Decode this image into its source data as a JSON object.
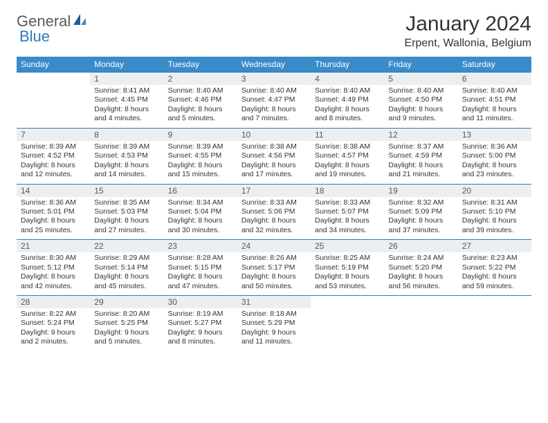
{
  "logo": {
    "text1": "General",
    "text2": "Blue"
  },
  "title": "January 2024",
  "location": "Erpent, Wallonia, Belgium",
  "colors": {
    "header_bg": "#3a8bc9",
    "header_text": "#ffffff",
    "daynum_bg": "#eceff1",
    "border": "#2f7ac0",
    "logo_gray": "#5a5a5a",
    "logo_blue": "#2f7ac0"
  },
  "day_headers": [
    "Sunday",
    "Monday",
    "Tuesday",
    "Wednesday",
    "Thursday",
    "Friday",
    "Saturday"
  ],
  "weeks": [
    [
      {
        "n": "",
        "sr": "",
        "ss": "",
        "dl": ""
      },
      {
        "n": "1",
        "sr": "Sunrise: 8:41 AM",
        "ss": "Sunset: 4:45 PM",
        "dl": "Daylight: 8 hours and 4 minutes."
      },
      {
        "n": "2",
        "sr": "Sunrise: 8:40 AM",
        "ss": "Sunset: 4:46 PM",
        "dl": "Daylight: 8 hours and 5 minutes."
      },
      {
        "n": "3",
        "sr": "Sunrise: 8:40 AM",
        "ss": "Sunset: 4:47 PM",
        "dl": "Daylight: 8 hours and 7 minutes."
      },
      {
        "n": "4",
        "sr": "Sunrise: 8:40 AM",
        "ss": "Sunset: 4:49 PM",
        "dl": "Daylight: 8 hours and 8 minutes."
      },
      {
        "n": "5",
        "sr": "Sunrise: 8:40 AM",
        "ss": "Sunset: 4:50 PM",
        "dl": "Daylight: 8 hours and 9 minutes."
      },
      {
        "n": "6",
        "sr": "Sunrise: 8:40 AM",
        "ss": "Sunset: 4:51 PM",
        "dl": "Daylight: 8 hours and 11 minutes."
      }
    ],
    [
      {
        "n": "7",
        "sr": "Sunrise: 8:39 AM",
        "ss": "Sunset: 4:52 PM",
        "dl": "Daylight: 8 hours and 12 minutes."
      },
      {
        "n": "8",
        "sr": "Sunrise: 8:39 AM",
        "ss": "Sunset: 4:53 PM",
        "dl": "Daylight: 8 hours and 14 minutes."
      },
      {
        "n": "9",
        "sr": "Sunrise: 8:39 AM",
        "ss": "Sunset: 4:55 PM",
        "dl": "Daylight: 8 hours and 15 minutes."
      },
      {
        "n": "10",
        "sr": "Sunrise: 8:38 AM",
        "ss": "Sunset: 4:56 PM",
        "dl": "Daylight: 8 hours and 17 minutes."
      },
      {
        "n": "11",
        "sr": "Sunrise: 8:38 AM",
        "ss": "Sunset: 4:57 PM",
        "dl": "Daylight: 8 hours and 19 minutes."
      },
      {
        "n": "12",
        "sr": "Sunrise: 8:37 AM",
        "ss": "Sunset: 4:59 PM",
        "dl": "Daylight: 8 hours and 21 minutes."
      },
      {
        "n": "13",
        "sr": "Sunrise: 8:36 AM",
        "ss": "Sunset: 5:00 PM",
        "dl": "Daylight: 8 hours and 23 minutes."
      }
    ],
    [
      {
        "n": "14",
        "sr": "Sunrise: 8:36 AM",
        "ss": "Sunset: 5:01 PM",
        "dl": "Daylight: 8 hours and 25 minutes."
      },
      {
        "n": "15",
        "sr": "Sunrise: 8:35 AM",
        "ss": "Sunset: 5:03 PM",
        "dl": "Daylight: 8 hours and 27 minutes."
      },
      {
        "n": "16",
        "sr": "Sunrise: 8:34 AM",
        "ss": "Sunset: 5:04 PM",
        "dl": "Daylight: 8 hours and 30 minutes."
      },
      {
        "n": "17",
        "sr": "Sunrise: 8:33 AM",
        "ss": "Sunset: 5:06 PM",
        "dl": "Daylight: 8 hours and 32 minutes."
      },
      {
        "n": "18",
        "sr": "Sunrise: 8:33 AM",
        "ss": "Sunset: 5:07 PM",
        "dl": "Daylight: 8 hours and 34 minutes."
      },
      {
        "n": "19",
        "sr": "Sunrise: 8:32 AM",
        "ss": "Sunset: 5:09 PM",
        "dl": "Daylight: 8 hours and 37 minutes."
      },
      {
        "n": "20",
        "sr": "Sunrise: 8:31 AM",
        "ss": "Sunset: 5:10 PM",
        "dl": "Daylight: 8 hours and 39 minutes."
      }
    ],
    [
      {
        "n": "21",
        "sr": "Sunrise: 8:30 AM",
        "ss": "Sunset: 5:12 PM",
        "dl": "Daylight: 8 hours and 42 minutes."
      },
      {
        "n": "22",
        "sr": "Sunrise: 8:29 AM",
        "ss": "Sunset: 5:14 PM",
        "dl": "Daylight: 8 hours and 45 minutes."
      },
      {
        "n": "23",
        "sr": "Sunrise: 8:28 AM",
        "ss": "Sunset: 5:15 PM",
        "dl": "Daylight: 8 hours and 47 minutes."
      },
      {
        "n": "24",
        "sr": "Sunrise: 8:26 AM",
        "ss": "Sunset: 5:17 PM",
        "dl": "Daylight: 8 hours and 50 minutes."
      },
      {
        "n": "25",
        "sr": "Sunrise: 8:25 AM",
        "ss": "Sunset: 5:19 PM",
        "dl": "Daylight: 8 hours and 53 minutes."
      },
      {
        "n": "26",
        "sr": "Sunrise: 8:24 AM",
        "ss": "Sunset: 5:20 PM",
        "dl": "Daylight: 8 hours and 56 minutes."
      },
      {
        "n": "27",
        "sr": "Sunrise: 8:23 AM",
        "ss": "Sunset: 5:22 PM",
        "dl": "Daylight: 8 hours and 59 minutes."
      }
    ],
    [
      {
        "n": "28",
        "sr": "Sunrise: 8:22 AM",
        "ss": "Sunset: 5:24 PM",
        "dl": "Daylight: 9 hours and 2 minutes."
      },
      {
        "n": "29",
        "sr": "Sunrise: 8:20 AM",
        "ss": "Sunset: 5:25 PM",
        "dl": "Daylight: 9 hours and 5 minutes."
      },
      {
        "n": "30",
        "sr": "Sunrise: 8:19 AM",
        "ss": "Sunset: 5:27 PM",
        "dl": "Daylight: 9 hours and 8 minutes."
      },
      {
        "n": "31",
        "sr": "Sunrise: 8:18 AM",
        "ss": "Sunset: 5:29 PM",
        "dl": "Daylight: 9 hours and 11 minutes."
      },
      {
        "n": "",
        "sr": "",
        "ss": "",
        "dl": ""
      },
      {
        "n": "",
        "sr": "",
        "ss": "",
        "dl": ""
      },
      {
        "n": "",
        "sr": "",
        "ss": "",
        "dl": ""
      }
    ]
  ]
}
